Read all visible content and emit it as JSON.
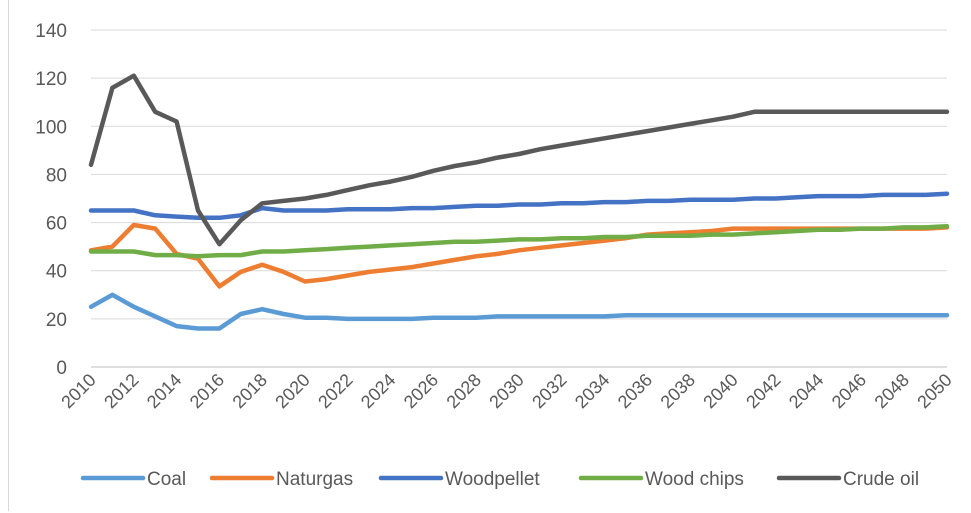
{
  "chart_data": {
    "type": "line",
    "title": "",
    "xlabel": "",
    "ylabel": "",
    "x": [
      2010,
      2011,
      2012,
      2013,
      2014,
      2015,
      2016,
      2017,
      2018,
      2019,
      2020,
      2021,
      2022,
      2023,
      2024,
      2025,
      2026,
      2027,
      2028,
      2029,
      2030,
      2031,
      2032,
      2033,
      2034,
      2035,
      2036,
      2037,
      2038,
      2039,
      2040,
      2041,
      2042,
      2043,
      2044,
      2045,
      2046,
      2047,
      2048,
      2049,
      2050
    ],
    "x_tick_labels": [
      "2010",
      "2012",
      "2014",
      "2016",
      "2018",
      "2020",
      "2022",
      "2024",
      "2026",
      "2028",
      "2030",
      "2032",
      "2034",
      "2036",
      "2038",
      "2040",
      "2042",
      "2044",
      "2046",
      "2048",
      "2050"
    ],
    "ylim": [
      0,
      140
    ],
    "y_ticks": [
      0,
      20,
      40,
      60,
      80,
      100,
      120,
      140
    ],
    "y_tick_labels": [
      "0",
      "20",
      "40",
      "60",
      "80",
      "100",
      "120",
      "140"
    ],
    "grid": true,
    "legend_position": "bottom",
    "series": [
      {
        "name": "Coal",
        "color": "#5b9bd5",
        "values": [
          25,
          30,
          25,
          21,
          17,
          16,
          16,
          22,
          24,
          22,
          20.5,
          20.5,
          20,
          20,
          20,
          20,
          20.5,
          20.5,
          20.5,
          21,
          21,
          21,
          21,
          21,
          21,
          21.5,
          21.5,
          21.5,
          21.5,
          21.5,
          21.5,
          21.5,
          21.5,
          21.5,
          21.5,
          21.5,
          21.5,
          21.5,
          21.5,
          21.5,
          21.5
        ]
      },
      {
        "name": "Naturgas",
        "color": "#ed7d31",
        "values": [
          48.5,
          50,
          59,
          57.5,
          47,
          45,
          33.5,
          39.5,
          42.5,
          39.5,
          35.5,
          36.5,
          38,
          39.5,
          40.5,
          41.5,
          43,
          44.5,
          46,
          47,
          48.5,
          49.5,
          50.5,
          51.5,
          52.5,
          53.5,
          55,
          55.5,
          56,
          56.5,
          57.5,
          57.5,
          57.5,
          57.5,
          57.5,
          57.5,
          57.5,
          57.5,
          57.5,
          57.5,
          58
        ]
      },
      {
        "name": "Woodpellet",
        "color": "#4472c4",
        "values": [
          65,
          65,
          65,
          63,
          62.5,
          62,
          62,
          63,
          66,
          65,
          65,
          65,
          65.5,
          65.5,
          65.5,
          66,
          66,
          66.5,
          67,
          67,
          67.5,
          67.5,
          68,
          68,
          68.5,
          68.5,
          69,
          69,
          69.5,
          69.5,
          69.5,
          70,
          70,
          70.5,
          71,
          71,
          71,
          71.5,
          71.5,
          71.5,
          72
        ]
      },
      {
        "name": "Wood chips",
        "color": "#70ad47",
        "values": [
          48,
          48,
          48,
          46.5,
          46.5,
          46,
          46.5,
          46.5,
          48,
          48,
          48.5,
          49,
          49.5,
          50,
          50.5,
          51,
          51.5,
          52,
          52,
          52.5,
          53,
          53,
          53.5,
          53.5,
          54,
          54,
          54.5,
          54.5,
          54.5,
          55,
          55,
          55.5,
          56,
          56.5,
          57,
          57,
          57.5,
          57.5,
          58,
          58,
          58.5
        ]
      },
      {
        "name": "Crude oil",
        "color": "#595959",
        "values": [
          84,
          116,
          121,
          106,
          102,
          65,
          51,
          61,
          68,
          69,
          70,
          71.5,
          73.5,
          75.5,
          77,
          79,
          81.5,
          83.5,
          85,
          87,
          88.5,
          90.5,
          92,
          93.5,
          95,
          96.5,
          98,
          99.5,
          101,
          102.5,
          104,
          106,
          106,
          106,
          106,
          106,
          106,
          106,
          106,
          106,
          106
        ]
      }
    ]
  }
}
